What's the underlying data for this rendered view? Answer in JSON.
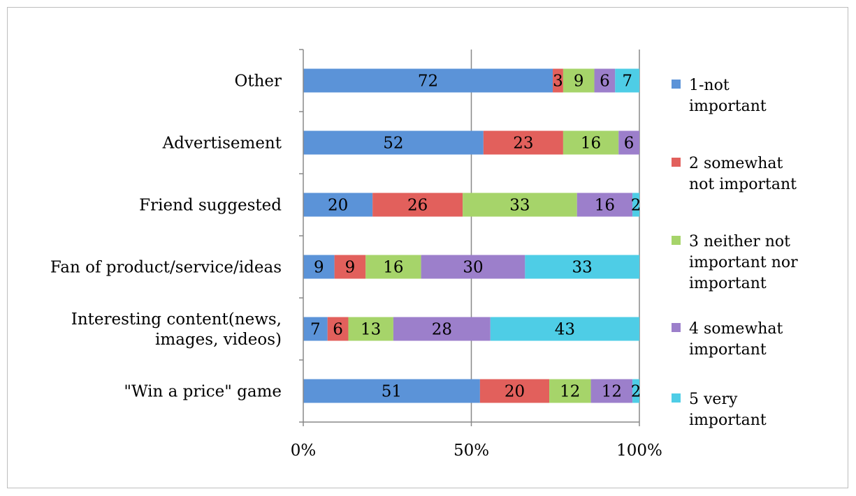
{
  "chart_data": {
    "type": "bar",
    "orientation": "horizontal",
    "stacked": "percent",
    "title": "",
    "xlabel": "",
    "ylabel": "",
    "xlim": [
      0,
      100
    ],
    "x_ticks": [
      "0%",
      "50%",
      "100%"
    ],
    "grid": "vertical lines at 0%, 50%, 100%",
    "legend_position": "right",
    "categories": [
      "Other",
      "Advertisement",
      "Friend suggested",
      "Fan of product/service/ideas",
      "Interesting content(news, images, videos)",
      "\"Win a price\" game"
    ],
    "category_lines": [
      [
        "Other"
      ],
      [
        "Advertisement"
      ],
      [
        "Friend suggested"
      ],
      [
        "Fan of product/service/ideas"
      ],
      [
        "Interesting content(news,",
        "images, videos)"
      ],
      [
        "\"Win a price\" game"
      ]
    ],
    "series": [
      {
        "name": "1-not important",
        "legend_lines": [
          "1-not",
          "important"
        ],
        "color": "#5b93d8",
        "values": [
          72,
          52,
          20,
          9,
          7,
          51
        ]
      },
      {
        "name": "2 somewhat not important",
        "legend_lines": [
          "2 somewhat",
          "not important"
        ],
        "color": "#e2605c",
        "values": [
          3,
          23,
          26,
          9,
          6,
          20
        ]
      },
      {
        "name": "3 neither not important nor important",
        "legend_lines": [
          "3 neither not",
          "important nor",
          "important"
        ],
        "color": "#a6d46a",
        "values": [
          9,
          16,
          33,
          16,
          13,
          12
        ]
      },
      {
        "name": "4 somewhat important",
        "legend_lines": [
          "4 somewhat",
          "important"
        ],
        "color": "#9c7fcb",
        "values": [
          6,
          6,
          16,
          30,
          28,
          12
        ]
      },
      {
        "name": "5 very important",
        "legend_lines": [
          "5 very",
          "important"
        ],
        "color": "#4ecde6",
        "values": [
          7,
          0,
          2,
          33,
          43,
          2
        ]
      }
    ]
  }
}
